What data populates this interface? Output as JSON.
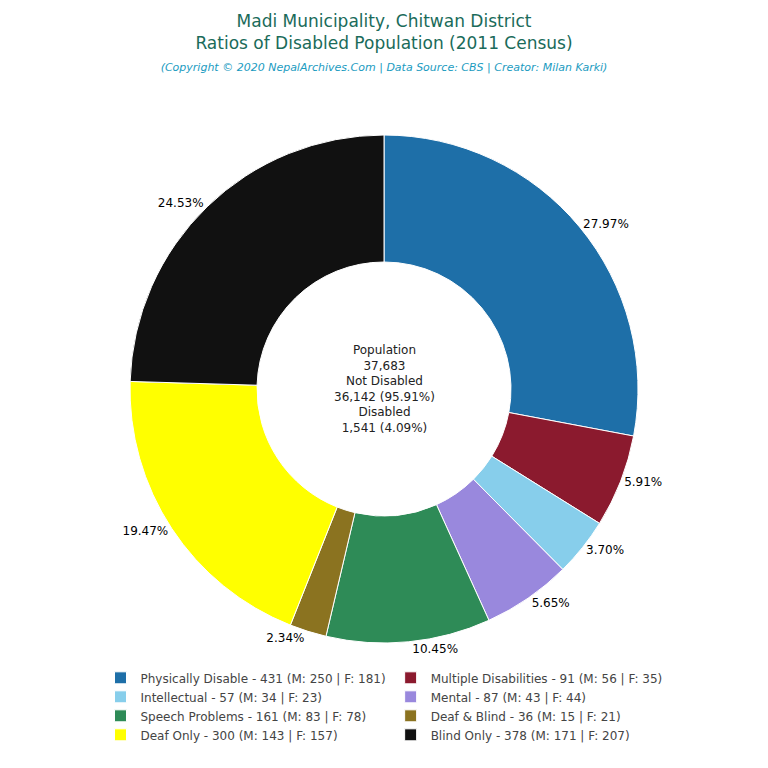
{
  "chart_data": {
    "type": "donut",
    "title": [
      "Madi Municipality, Chitwan District",
      "Ratios of Disabled Population (2011 Census)"
    ],
    "title_color": "#1a6b5a",
    "subtitle": "(Copyright © 2020 NepalArchives.Com | Data Source: CBS | Creator: Milan Karki)",
    "subtitle_color": "#1a9bbf",
    "categories": [
      "Physically Disable - 431 (M: 250 | F: 181)",
      "Multiple Disabilities - 91 (M: 56 | F: 35)",
      "Intellectual - 57 (M: 34 | F: 23)",
      "Mental - 87 (M: 43 | F: 44)",
      "Speech Problems - 161 (M: 83 | F: 78)",
      "Deaf & Blind - 36 (M: 15 | F: 21)",
      "Deaf Only - 300 (M: 143 | F: 157)",
      "Blind Only - 378 (M: 171 | F: 207)"
    ],
    "values": [
      27.97,
      5.91,
      3.7,
      5.65,
      10.45,
      2.34,
      19.47,
      24.53
    ],
    "value_labels": [
      "27.97%",
      "5.91%",
      "3.70%",
      "5.65%",
      "10.45%",
      "2.34%",
      "19.47%",
      "24.53%"
    ],
    "colors": [
      "#1e6fa8",
      "#8b1a2e",
      "#87ceeb",
      "#9988dd",
      "#2e8b57",
      "#8b7320",
      "#ffff00",
      "#111111"
    ],
    "data_labels": true,
    "annotations": [
      "Population",
      "37,683",
      "Not Disabled",
      "36,142 (95.91%)",
      "Disabled",
      "1,541 (4.09%)"
    ],
    "annotation_color": "#222222",
    "legend": "bottom"
  }
}
